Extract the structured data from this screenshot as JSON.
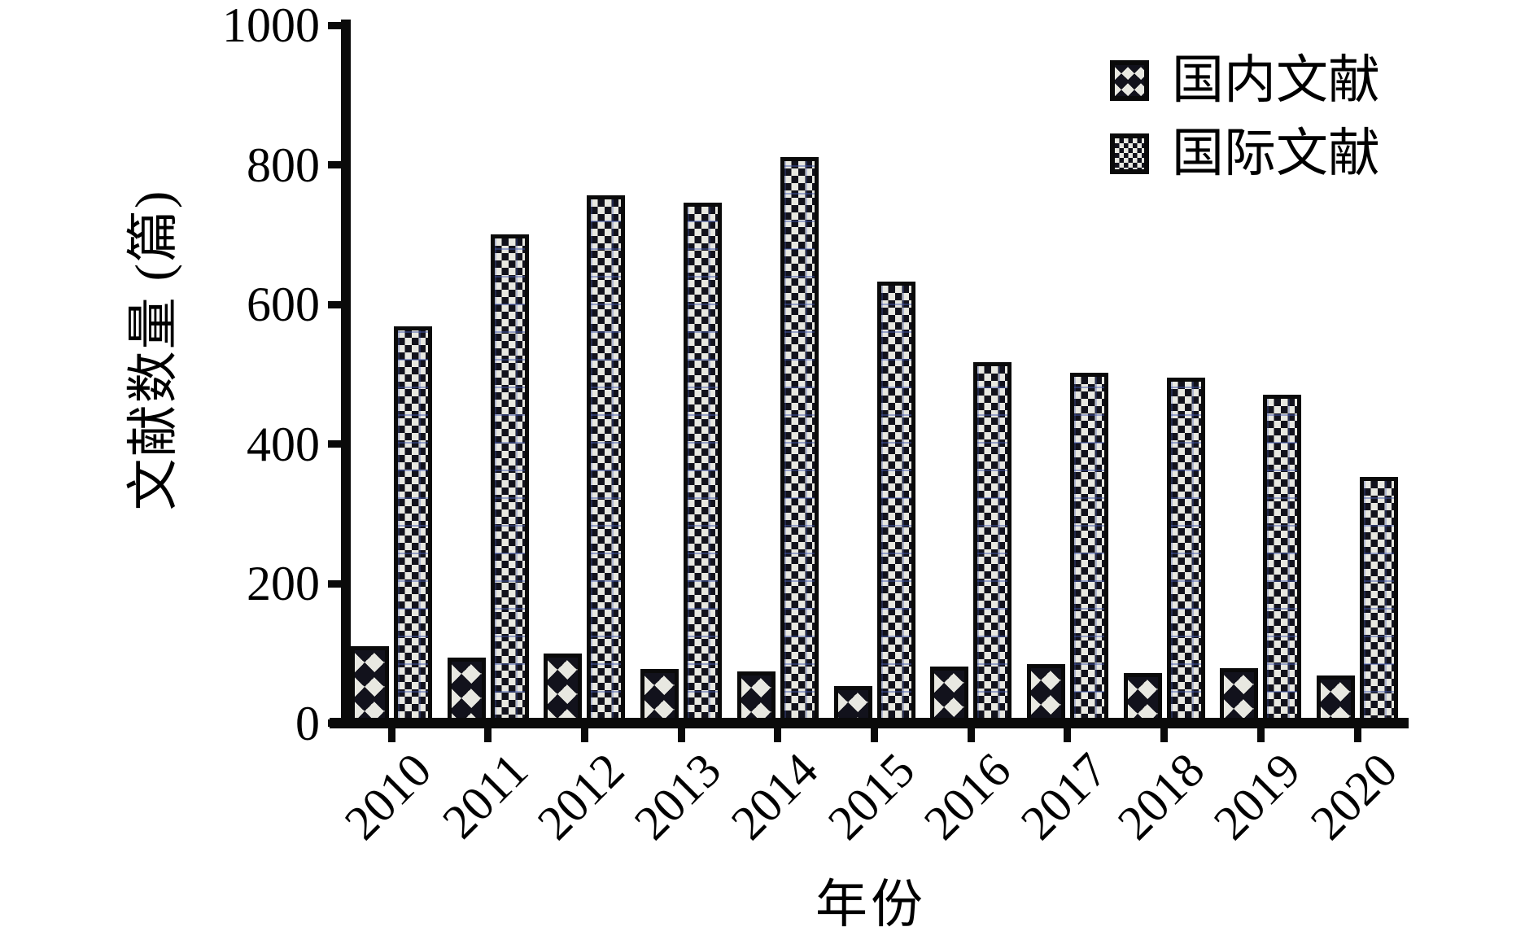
{
  "chart_data": {
    "type": "bar",
    "title": "",
    "categories": [
      "2010",
      "2011",
      "2012",
      "2013",
      "2014",
      "2015",
      "2016",
      "2017",
      "2018",
      "2019",
      "2020"
    ],
    "series": [
      {
        "name": "国内文献",
        "key": "domestic",
        "pattern": "diamond-crosshatch",
        "values": [
          110,
          93,
          99,
          77,
          73,
          52,
          80,
          84,
          71,
          78,
          68
        ]
      },
      {
        "name": "国际文献",
        "key": "international",
        "pattern": "checkerboard",
        "values": [
          568,
          700,
          756,
          745,
          810,
          632,
          517,
          502,
          495,
          470,
          352
        ]
      }
    ],
    "xlabel": "年份",
    "ylabel": "文献数量 (篇)",
    "ylim": [
      0,
      1000
    ],
    "yticks": [
      0,
      200,
      400,
      600,
      800,
      1000
    ],
    "legend_position": "top-right",
    "grid": false,
    "colors": {
      "pattern_dark": "#12121c",
      "pattern_light": "#e8e8e1",
      "axis": "#0a0a0a",
      "background": "#ffffff"
    }
  }
}
